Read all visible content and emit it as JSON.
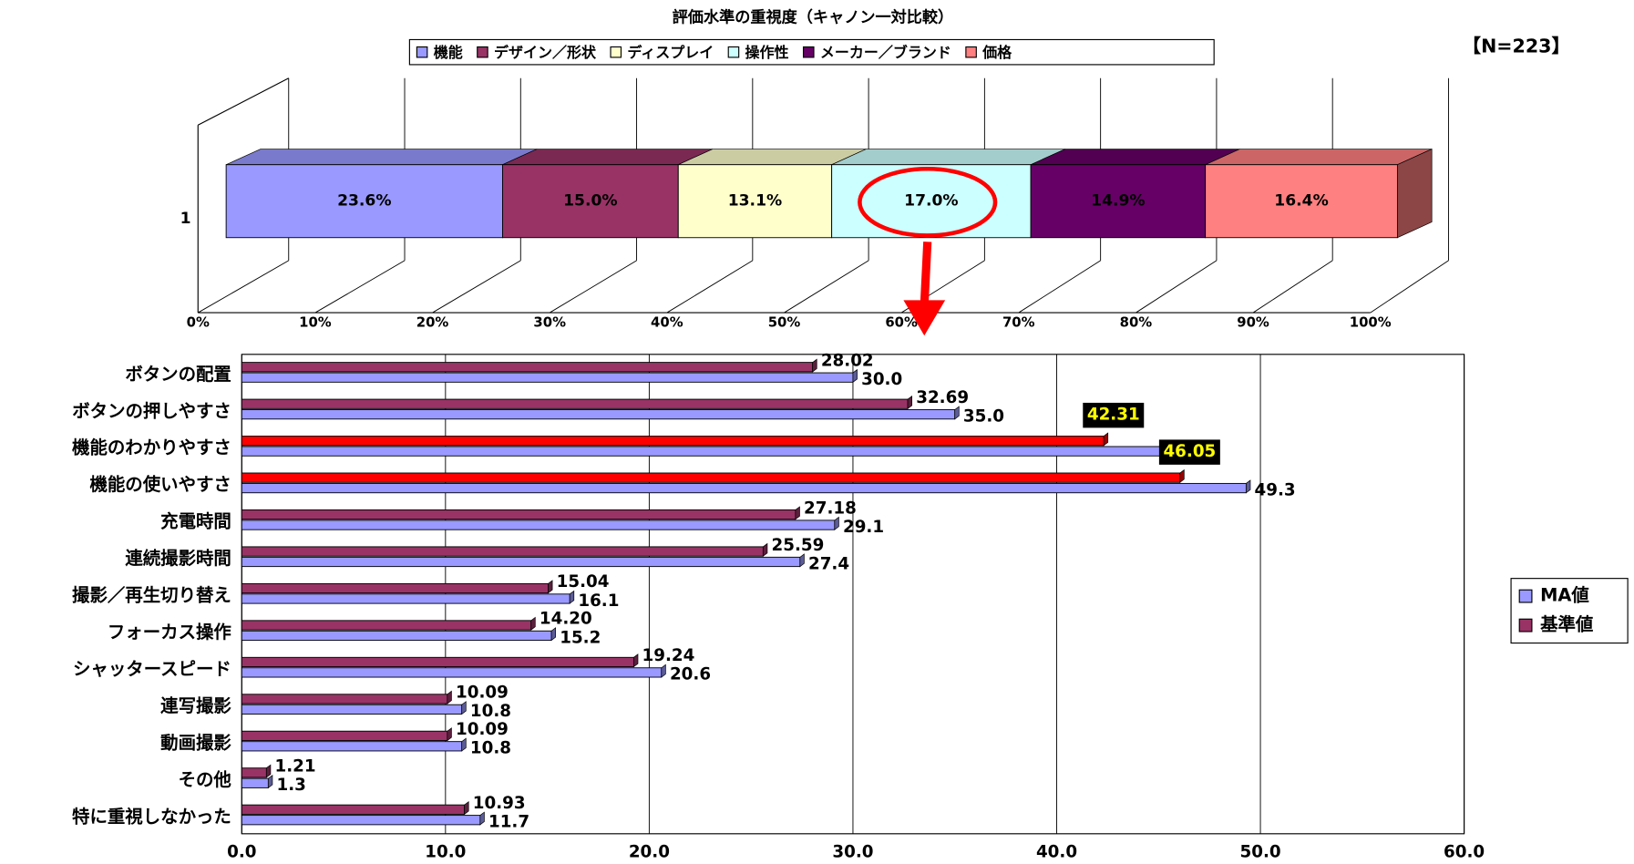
{
  "chart_data": [
    {
      "type": "stacked-bar-3d",
      "title": "評価水準の重視度（キャノン一対比較）",
      "annotation": "【N=223】",
      "categories": [
        "1"
      ],
      "series": [
        {
          "name": "機能",
          "color": "#9999ff",
          "values": [
            23.6
          ],
          "value_labels": [
            "23.6%"
          ]
        },
        {
          "name": "デザイン／形状",
          "color": "#993366",
          "values": [
            15.0
          ],
          "value_labels": [
            "15.0%"
          ]
        },
        {
          "name": "ディスプレイ",
          "color": "#ffffcc",
          "values": [
            13.1
          ],
          "value_labels": [
            "13.1%"
          ]
        },
        {
          "name": "操作性",
          "color": "#ccffff",
          "values": [
            17.0
          ],
          "value_labels": [
            "17.0%"
          ]
        },
        {
          "name": "メーカー／ブランド",
          "color": "#660066",
          "values": [
            14.9
          ],
          "value_labels": [
            "14.9%"
          ]
        },
        {
          "name": "価格",
          "color": "#ff8080",
          "values": [
            16.4
          ],
          "value_labels": [
            "16.4%"
          ]
        }
      ],
      "xlim": [
        0,
        100
      ],
      "xticks": [
        {
          "value": 0,
          "label": "0%"
        },
        {
          "value": 10,
          "label": "10%"
        },
        {
          "value": 20,
          "label": "20%"
        },
        {
          "value": 30,
          "label": "30%"
        },
        {
          "value": 40,
          "label": "40%"
        },
        {
          "value": 50,
          "label": "50%"
        },
        {
          "value": 60,
          "label": "60%"
        },
        {
          "value": 70,
          "label": "70%"
        },
        {
          "value": 80,
          "label": "80%"
        },
        {
          "value": 90,
          "label": "90%"
        },
        {
          "value": 100,
          "label": "100%"
        }
      ],
      "grid": true
    },
    {
      "type": "grouped-hbar",
      "categories": [
        "ボタンの配置",
        "ボタンの押しやすさ",
        "機能のわかりやすさ",
        "機能の使いやすさ",
        "充電時間",
        "連続撮影時間",
        "撮影／再生切り替え",
        "フォーカス操作",
        "シャッタースピード",
        "連写撮影",
        "動画撮影",
        "その他",
        "特に重視しなかった"
      ],
      "series": [
        {
          "name": "MA値",
          "color": "#9999ff",
          "values": [
            30.0,
            35.0,
            45.3,
            49.3,
            29.1,
            27.4,
            16.1,
            15.2,
            20.6,
            10.8,
            10.8,
            1.3,
            11.7
          ],
          "value_labels": [
            "30.0",
            "35.0",
            "45.3",
            "49.3",
            "29.1",
            "27.4",
            "16.1",
            "15.2",
            "20.6",
            "10.8",
            "10.8",
            "1.3",
            "11.7"
          ]
        },
        {
          "name": "基準値",
          "color": "#993366",
          "colors": [
            "#993366",
            "#993366",
            "#ff0000",
            "#ff0000",
            "#993366",
            "#993366",
            "#993366",
            "#993366",
            "#993366",
            "#993366",
            "#993366",
            "#993366",
            "#993366"
          ],
          "values": [
            28.02,
            32.69,
            42.31,
            46.05,
            27.18,
            25.59,
            15.04,
            14.2,
            19.24,
            10.09,
            10.09,
            1.21,
            10.93
          ],
          "value_labels": [
            "28.02",
            "32.69",
            "42.31",
            "46.05",
            "27.18",
            "25.59",
            "15.04",
            "14.20",
            "19.24",
            "10.09",
            "10.09",
            "1.21",
            "10.93"
          ]
        }
      ],
      "xlim": [
        0,
        60
      ],
      "xticks": [
        {
          "value": 0,
          "label": "0.0"
        },
        {
          "value": 10,
          "label": "10.0"
        },
        {
          "value": 20,
          "label": "20.0"
        },
        {
          "value": 30,
          "label": "30.0"
        },
        {
          "value": 40,
          "label": "40.0"
        },
        {
          "value": 50,
          "label": "50.0"
        },
        {
          "value": 60,
          "label": "60.0"
        }
      ],
      "grid": true
    }
  ]
}
